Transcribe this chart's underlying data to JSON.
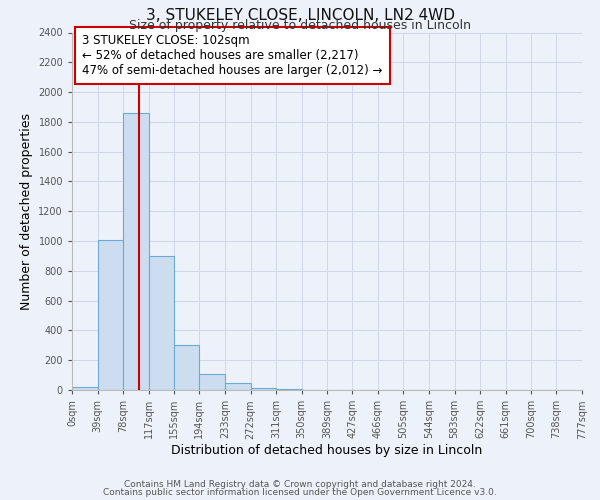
{
  "title": "3, STUKELEY CLOSE, LINCOLN, LN2 4WD",
  "subtitle": "Size of property relative to detached houses in Lincoln",
  "xlabel": "Distribution of detached houses by size in Lincoln",
  "ylabel": "Number of detached properties",
  "bar_left_edges": [
    0,
    39,
    78,
    117,
    155,
    194,
    233,
    272,
    311,
    350,
    389,
    427,
    466,
    505,
    544,
    583,
    622,
    661,
    700,
    738
  ],
  "bar_heights": [
    20,
    1005,
    1860,
    900,
    300,
    105,
    45,
    15,
    5,
    0,
    0,
    0,
    0,
    0,
    0,
    0,
    0,
    0,
    0,
    0
  ],
  "bin_width": 39,
  "bar_color": "#ccddf0",
  "bar_edge_color": "#6aaad4",
  "property_size": 102,
  "property_line_color": "#cc0000",
  "xlim": [
    0,
    777
  ],
  "ylim": [
    0,
    2400
  ],
  "yticks": [
    0,
    200,
    400,
    600,
    800,
    1000,
    1200,
    1400,
    1600,
    1800,
    2000,
    2200,
    2400
  ],
  "xtick_labels": [
    "0sqm",
    "39sqm",
    "78sqm",
    "117sqm",
    "155sqm",
    "194sqm",
    "233sqm",
    "272sqm",
    "311sqm",
    "350sqm",
    "389sqm",
    "427sqm",
    "466sqm",
    "505sqm",
    "544sqm",
    "583sqm",
    "622sqm",
    "661sqm",
    "700sqm",
    "738sqm",
    "777sqm"
  ],
  "xtick_positions": [
    0,
    39,
    78,
    117,
    155,
    194,
    233,
    272,
    311,
    350,
    389,
    427,
    466,
    505,
    544,
    583,
    622,
    661,
    700,
    738,
    777
  ],
  "ann_line1": "3 STUKELEY CLOSE: 102sqm",
  "ann_line2": "← 52% of detached houses are smaller (2,217)",
  "ann_line3": "47% of semi-detached houses are larger (2,012) →",
  "footer_line1": "Contains HM Land Registry data © Crown copyright and database right 2024.",
  "footer_line2": "Contains public sector information licensed under the Open Government Licence v3.0.",
  "background_color": "#edf2fa",
  "grid_color": "#d0d8e8",
  "title_fontsize": 11,
  "subtitle_fontsize": 9,
  "axis_label_fontsize": 9,
  "tick_fontsize": 7,
  "annotation_fontsize": 8.5,
  "footer_fontsize": 6.5
}
